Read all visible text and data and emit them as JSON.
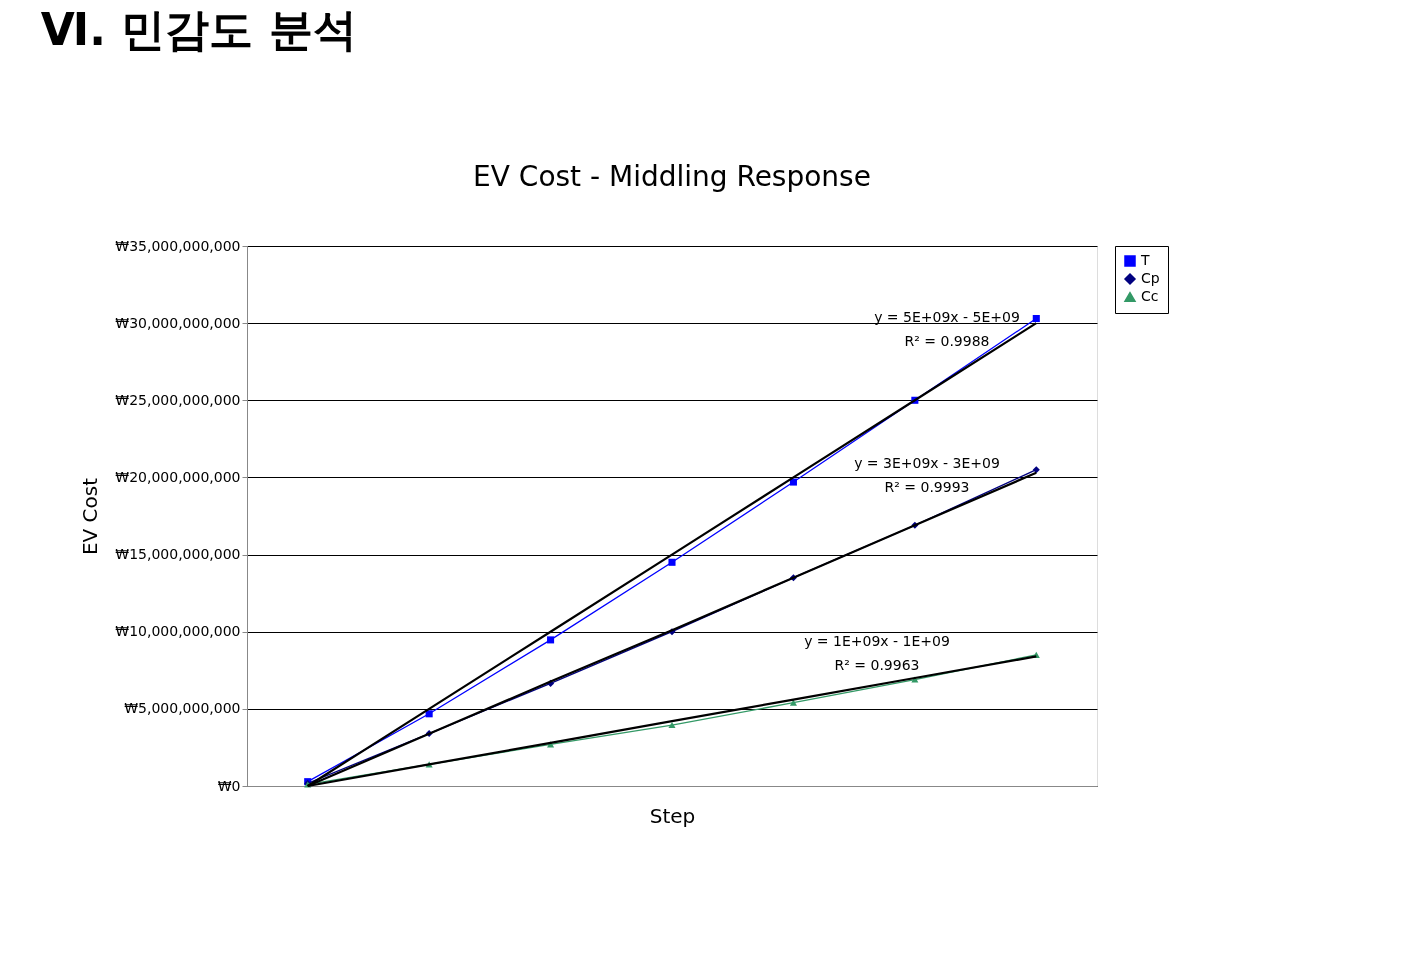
{
  "chart_data": {
    "type": "line",
    "title": "Ⅵ. 민감도 분석",
    "subtitle": "EV Cost - Middling Response",
    "xlabel": "Step",
    "ylabel": "EV Cost",
    "categories": [
      null,
      null,
      null,
      null,
      null,
      null,
      null
    ],
    "series": [
      {
        "name": "T",
        "color": "#0000ff",
        "marker": "square",
        "values": [
          280000000,
          4680000000,
          9470000000,
          14500000000,
          19700000000,
          25000000000,
          30300000000
        ]
      },
      {
        "name": "Cp",
        "color": "#000080",
        "marker": "diamond",
        "values": [
          170000000,
          3400000000,
          6650000000,
          10000000000,
          13500000000,
          16900000000,
          20500000000
        ]
      },
      {
        "name": "Cc",
        "color": "#339966",
        "marker": "triangle",
        "values": [
          100000000,
          1400000000,
          2700000000,
          3950000000,
          5400000000,
          6900000000,
          8500000000
        ]
      },
      {
        "color": "#000000",
        "values": [
          0,
          5000000000,
          10000000000,
          15000000000,
          20000000000,
          25000000000,
          30000000000
        ]
      },
      {
        "color": "#000000",
        "values": [
          0,
          3380000000,
          6770000000,
          10100000000,
          13500000000,
          16900000000,
          20300000000
        ]
      },
      {
        "color": "#000000",
        "values": [
          0,
          1400000000,
          2800000000,
          4200000000,
          5600000000,
          7000000000,
          8400000000
        ]
      }
    ],
    "annotations": [
      "y = 5E+09x - 5E+09",
      "R² = 0.9988",
      "y = 3E+09x - 3E+09",
      "R² = 0.9993",
      "y = 1E+09x - 1E+09",
      "R² = 0.9963"
    ],
    "ylim": [
      0,
      35000000000
    ],
    "yticks": [
      {
        "value": 0,
        "label": "₩0"
      },
      {
        "value": 5000000000,
        "label": "₩5,000,000,000"
      },
      {
        "value": 10000000000,
        "label": "₩10,000,000,000"
      },
      {
        "value": 15000000000,
        "label": "₩15,000,000,000"
      },
      {
        "value": 20000000000,
        "label": "₩20,000,000,000"
      },
      {
        "value": 25000000000,
        "label": "₩25,000,000,000"
      },
      {
        "value": 30000000000,
        "label": "₩30,000,000,000"
      },
      {
        "value": 35000000000,
        "label": "₩35,000,000,000"
      }
    ],
    "grid": "y",
    "legend": "right"
  }
}
